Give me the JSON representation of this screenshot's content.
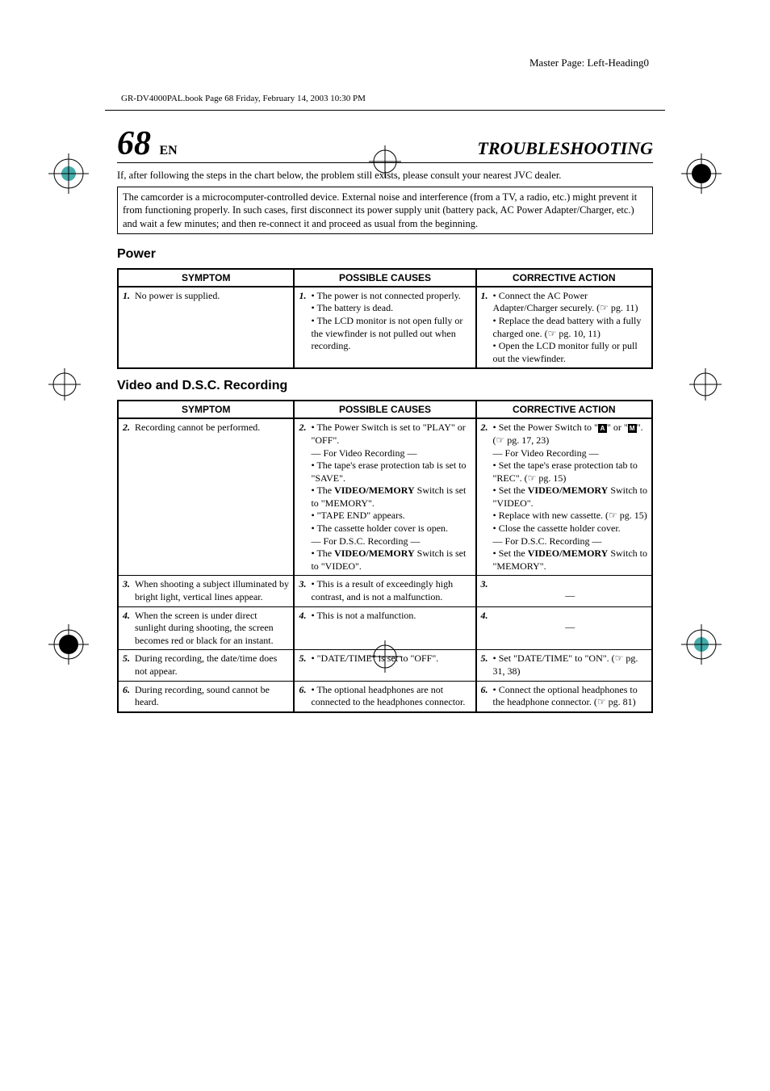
{
  "masterPage": "Master Page: Left-Heading0",
  "bookHeader": "GR-DV4000PAL.book  Page 68  Friday, February 14, 2003  10:30 PM",
  "pageNumber": "68",
  "pageLang": "EN",
  "sectionTitle": "TROUBLESHOOTING",
  "introText": "If, after following the steps in the chart below, the problem still exists, please consult your nearest JVC dealer.",
  "noteBox": "The camcorder is a microcomputer-controlled device. External noise and interference (from a TV, a radio, etc.) might prevent it from functioning properly. In such cases, first disconnect its power supply unit (battery pack, AC Power Adapter/Charger, etc.) and wait a few minutes; and then re-connect it and proceed as usual from the beginning.",
  "sections": [
    {
      "heading": "Power",
      "headers": [
        "SYMPTOM",
        "POSSIBLE CAUSES",
        "CORRECTIVE ACTION"
      ],
      "rows": [
        {
          "idx": "1.",
          "symptom": "No power is supplied.",
          "causes": "• The power is not connected properly.\n• The battery is dead.\n• The LCD monitor is not open fully or the viewfinder is not pulled out when recording.",
          "action": "• Connect the AC Power Adapter/Charger securely. (☞ pg. 11)\n• Replace the dead battery with a fully charged one. (☞ pg. 10, 11)\n• Open the LCD monitor fully or pull out the viewfinder."
        }
      ]
    },
    {
      "heading": "Video and D.S.C. Recording",
      "headers": [
        "SYMPTOM",
        "POSSIBLE CAUSES",
        "CORRECTIVE ACTION"
      ],
      "rows": [
        {
          "idx": "2.",
          "symptom": "Recording cannot be performed.",
          "causes_html": "• The Power Switch is set to \"PLAY\" or \"OFF\".<br>— For Video Recording —<br>• The tape's erase protection tab is set to \"SAVE\".<br>• The <b>VIDEO/MEMORY</b> Switch is set to \"MEMORY\".<br>• \"TAPE END\" appears.<br>• The cassette holder cover is open.<br>— For D.S.C. Recording —<br>• The <b>VIDEO/MEMORY</b> Switch is set to \"VIDEO\".",
          "action_html": "• Set the Power Switch to \"<span class='a-icon'>A</span>\" or \"<span class='m-icon'>M</span>\". (☞ pg. 17, 23)<br>— For Video Recording —<br>• Set the tape's erase protection tab to \"REC\". (☞ pg. 15)<br>• Set the <b>VIDEO/MEMORY</b> Switch to \"VIDEO\".<br>• Replace with new cassette. (☞ pg. 15)<br>• Close the cassette holder cover.<br>— For D.S.C. Recording —<br>• Set the <b>VIDEO/MEMORY</b> Switch to \"MEMORY\"."
        },
        {
          "idx": "3.",
          "symptom": "When shooting a subject illuminated by bright light, vertical lines appear.",
          "causes": "• This is a result of exceedingly high contrast, and is not a malfunction.",
          "action_dash": true
        },
        {
          "idx": "4.",
          "symptom": "When the screen is under direct sunlight during shooting, the screen becomes red or black for an instant.",
          "causes": "• This is not a malfunction.",
          "action_dash": true
        },
        {
          "idx": "5.",
          "symptom": "During recording, the date/time does not appear.",
          "causes": "• \"DATE/TIME\" is set to \"OFF\".",
          "action": "• Set \"DATE/TIME\" to \"ON\". (☞ pg. 31, 38)"
        },
        {
          "idx": "6.",
          "symptom": "During recording, sound cannot be heard.",
          "causes": "• The optional headphones are not connected to the headphones connector.",
          "action": "• Connect the optional headphones to the headphone connector. (☞ pg. 81)"
        }
      ]
    }
  ],
  "colors": {
    "text": "#000000",
    "background": "#ffffff",
    "border": "#000000"
  }
}
